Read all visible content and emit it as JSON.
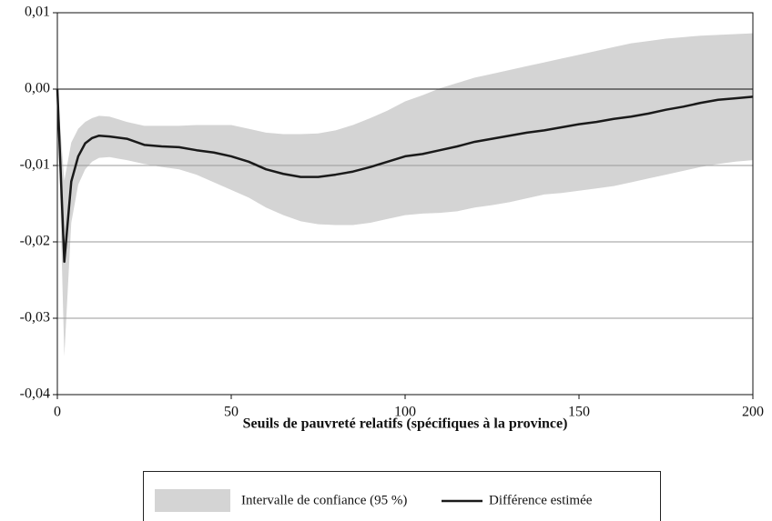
{
  "chart_data": {
    "type": "line",
    "xlabel": "Seuils de pauvreté relatifs (spécifiques à la province)",
    "x": [
      0,
      2,
      4,
      6,
      8,
      10,
      12,
      15,
      20,
      25,
      30,
      35,
      40,
      45,
      50,
      55,
      60,
      65,
      70,
      75,
      80,
      85,
      90,
      95,
      100,
      105,
      110,
      115,
      120,
      125,
      130,
      135,
      140,
      145,
      150,
      155,
      160,
      165,
      170,
      175,
      180,
      185,
      190,
      195,
      200
    ],
    "xlim": [
      0,
      200
    ],
    "xticks": [
      0,
      50,
      100,
      150,
      200
    ],
    "ylim": [
      -0.04,
      0.01
    ],
    "yticks": [
      {
        "value": -0.04,
        "label": "-0,04"
      },
      {
        "value": -0.03,
        "label": "-0,03"
      },
      {
        "value": -0.02,
        "label": "-0,02"
      },
      {
        "value": -0.01,
        "label": "-0,01"
      },
      {
        "value": 0,
        "label": "0,00"
      },
      {
        "value": 0.01,
        "label": "0,01"
      }
    ],
    "grid": true,
    "band": {
      "name": "Intervalle de confiance (95 %)",
      "color": "#d4d4d4",
      "upper": [
        0,
        -0.012,
        -0.007,
        -0.0052,
        -0.0043,
        -0.0038,
        -0.0035,
        -0.0036,
        -0.0043,
        -0.0048,
        -0.0048,
        -0.0048,
        -0.0047,
        -0.0047,
        -0.0047,
        -0.0052,
        -0.0057,
        -0.0059,
        -0.0059,
        -0.0058,
        -0.0054,
        -0.0047,
        -0.0038,
        -0.0028,
        -0.0016,
        -0.0008,
        0.0001,
        0.0008,
        0.0015,
        0.002,
        0.0025,
        0.003,
        0.0035,
        0.004,
        0.0045,
        0.005,
        0.0055,
        0.006,
        0.0063,
        0.0066,
        0.0068,
        0.007,
        0.0071,
        0.0072,
        0.0073
      ],
      "lower": [
        0,
        -0.035,
        -0.0175,
        -0.0125,
        -0.0105,
        -0.0095,
        -0.009,
        -0.0089,
        -0.0093,
        -0.0098,
        -0.0102,
        -0.0105,
        -0.0112,
        -0.0122,
        -0.0132,
        -0.0142,
        -0.0155,
        -0.0165,
        -0.0173,
        -0.0177,
        -0.0178,
        -0.0178,
        -0.0175,
        -0.017,
        -0.0165,
        -0.0163,
        -0.0162,
        -0.016,
        -0.0155,
        -0.0152,
        -0.0148,
        -0.0143,
        -0.0138,
        -0.0136,
        -0.0133,
        -0.013,
        -0.0127,
        -0.0122,
        -0.0117,
        -0.0112,
        -0.0107,
        -0.0102,
        -0.0098,
        -0.0095,
        -0.0093
      ]
    },
    "series": [
      {
        "name": "Différence estimée",
        "color": "#1a1a1a",
        "values": [
          0,
          -0.0226,
          -0.0121,
          -0.0088,
          -0.0071,
          -0.0064,
          -0.0061,
          -0.0062,
          -0.0065,
          -0.0073,
          -0.0075,
          -0.0076,
          -0.008,
          -0.0083,
          -0.0088,
          -0.0095,
          -0.0105,
          -0.0111,
          -0.0115,
          -0.0115,
          -0.0112,
          -0.0108,
          -0.0102,
          -0.0095,
          -0.0088,
          -0.0085,
          -0.008,
          -0.0075,
          -0.0069,
          -0.0065,
          -0.0061,
          -0.0057,
          -0.0054,
          -0.005,
          -0.0046,
          -0.0043,
          -0.0039,
          -0.0036,
          -0.0032,
          -0.0027,
          -0.0023,
          -0.0018,
          -0.0014,
          -0.0012,
          -0.001
        ]
      }
    ]
  }
}
